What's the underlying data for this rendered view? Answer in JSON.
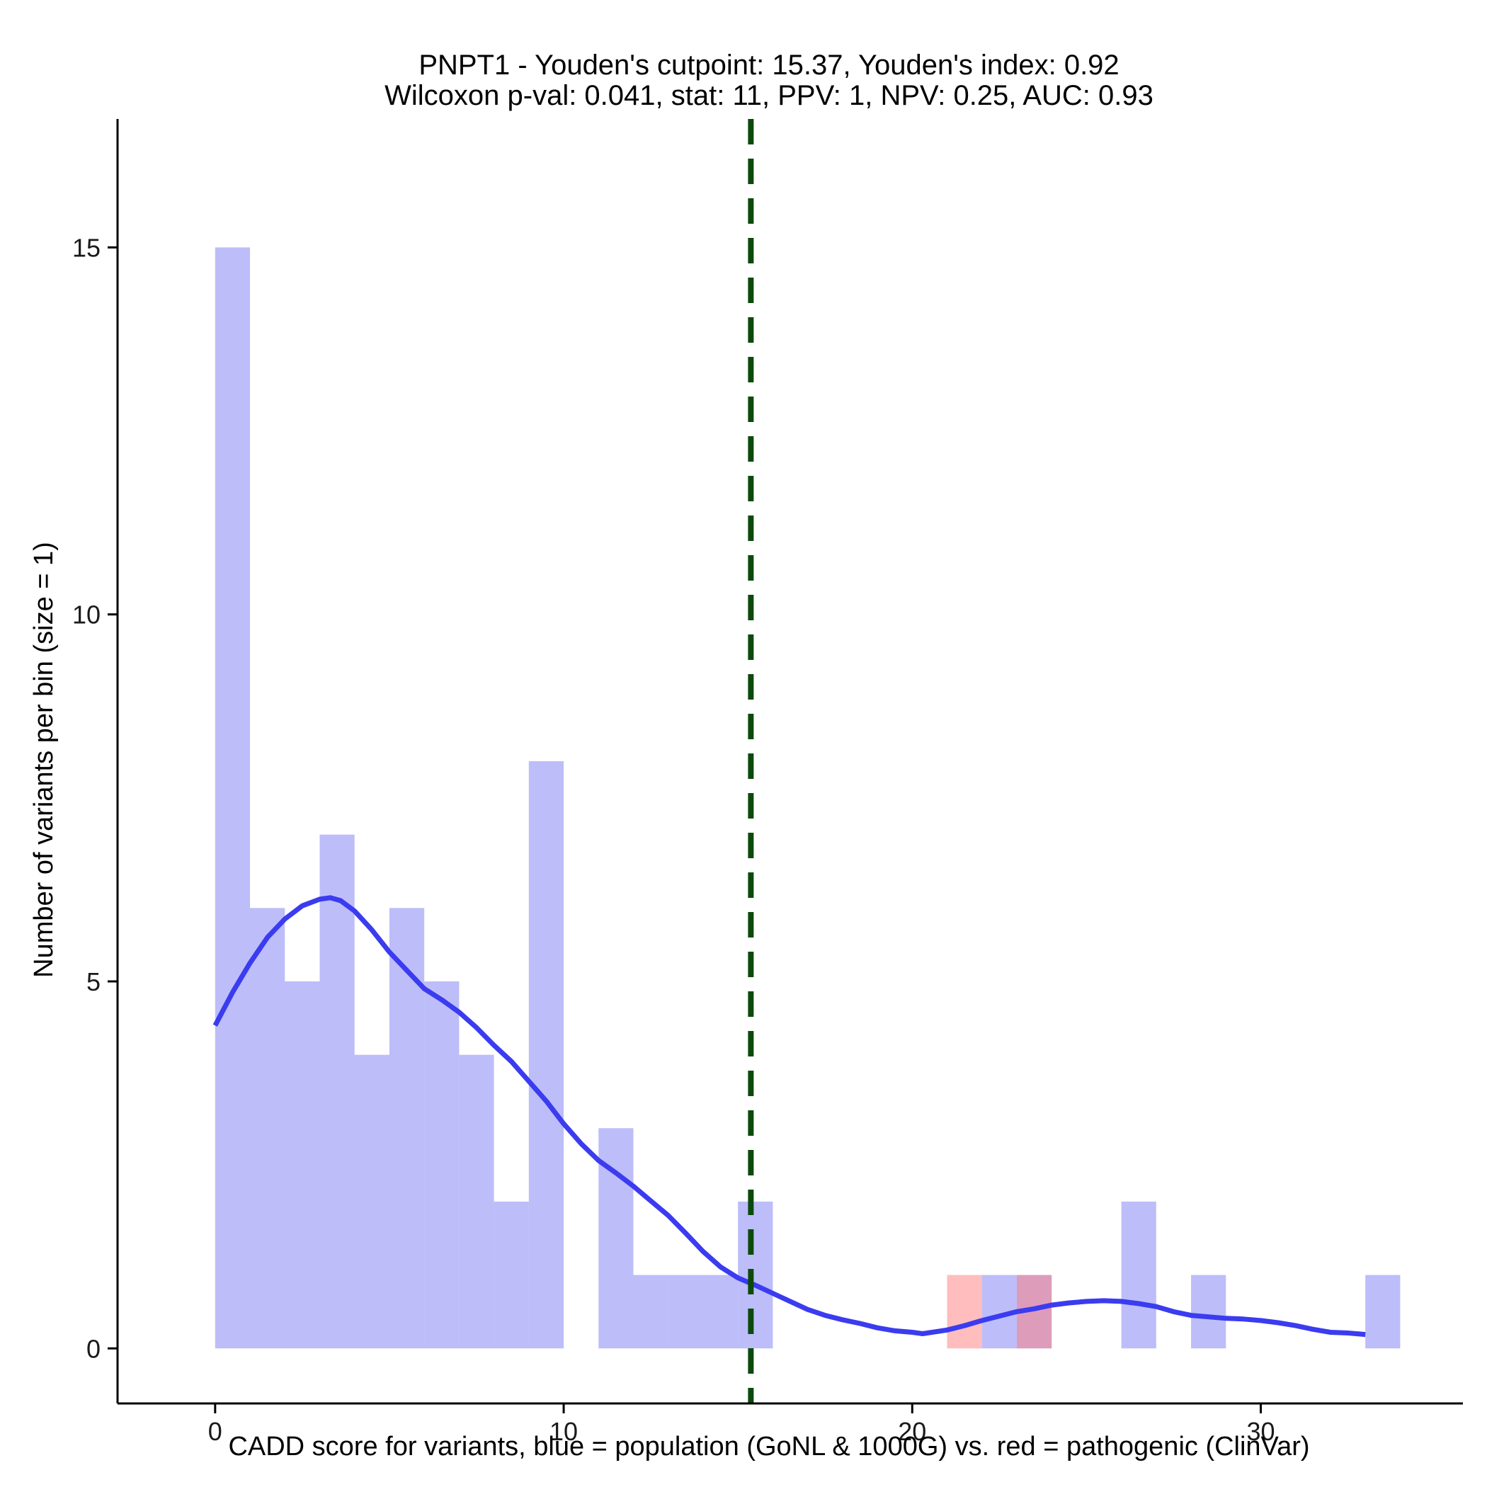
{
  "chart_data": {
    "type": "histogram",
    "title_line1": "PNPT1 - Youden's cutpoint: 15.37, Youden's index: 0.92",
    "title_line2": "Wilcoxon p-val: 0.041, stat: 11, PPV: 1, NPV: 0.25, AUC: 0.93",
    "xlabel": "CADD score for variants, blue = population (GoNL & 1000G) vs. red = pathogenic (ClinVar)",
    "ylabel": "Number of variants per bin (size = 1)",
    "xlim": [
      -2.8,
      35.8
    ],
    "ylim": [
      -0.75,
      16.75
    ],
    "x_ticks": [
      0,
      10,
      20,
      30
    ],
    "x_tick_labels": [
      "0",
      "10",
      "20",
      "30"
    ],
    "y_ticks": [
      0,
      5,
      10,
      15
    ],
    "y_tick_labels": [
      "0",
      "5",
      "10",
      "15"
    ],
    "bin_width": 1,
    "cutpoint": 15.37,
    "colors": {
      "population": "#7b7bf6",
      "pathogenic": "#ff7b7b",
      "density": "#3b3bf0",
      "cutpoint": "#0b4a0b"
    },
    "series": [
      {
        "name": "population (GoNL & 1000G)",
        "bins": [
          {
            "start": 0,
            "count": 15
          },
          {
            "start": 1,
            "count": 6
          },
          {
            "start": 2,
            "count": 5
          },
          {
            "start": 3,
            "count": 7
          },
          {
            "start": 4,
            "count": 4
          },
          {
            "start": 5,
            "count": 6
          },
          {
            "start": 6,
            "count": 5
          },
          {
            "start": 7,
            "count": 4
          },
          {
            "start": 8,
            "count": 2
          },
          {
            "start": 9,
            "count": 8
          },
          {
            "start": 11,
            "count": 3
          },
          {
            "start": 12,
            "count": 1
          },
          {
            "start": 13,
            "count": 1
          },
          {
            "start": 14,
            "count": 1
          },
          {
            "start": 15,
            "count": 2
          },
          {
            "start": 22,
            "count": 1
          },
          {
            "start": 23,
            "count": 1
          },
          {
            "start": 26,
            "count": 2
          },
          {
            "start": 28,
            "count": 1
          },
          {
            "start": 33,
            "count": 1
          }
        ]
      },
      {
        "name": "pathogenic (ClinVar)",
        "bins": [
          {
            "start": 21,
            "count": 1
          },
          {
            "start": 23,
            "count": 1
          }
        ]
      }
    ],
    "density_curve": {
      "name": "population density",
      "x": [
        0,
        0.5,
        1,
        1.5,
        2,
        2.5,
        3,
        3.3,
        3.6,
        4,
        4.5,
        5,
        5.5,
        6,
        6.5,
        7,
        7.5,
        8,
        8.5,
        9,
        9.5,
        10,
        10.5,
        11,
        11.5,
        12,
        12.5,
        13,
        13.5,
        14,
        14.5,
        15,
        15.5,
        16,
        16.5,
        17,
        17.5,
        18,
        18.5,
        19,
        19.5,
        20,
        20.3,
        21,
        21.5,
        22,
        22.5,
        23,
        23.5,
        24,
        24.5,
        25,
        25.5,
        26,
        26.5,
        27,
        27.5,
        28,
        28.5,
        29,
        29.5,
        30,
        30.5,
        31,
        31.5,
        32,
        32.5,
        33
      ],
      "y": [
        4.4,
        4.85,
        5.25,
        5.6,
        5.85,
        6.03,
        6.12,
        6.14,
        6.1,
        5.96,
        5.7,
        5.4,
        5.15,
        4.9,
        4.75,
        4.58,
        4.37,
        4.13,
        3.91,
        3.64,
        3.37,
        3.06,
        2.79,
        2.56,
        2.39,
        2.21,
        2.01,
        1.81,
        1.57,
        1.32,
        1.11,
        0.96,
        0.86,
        0.75,
        0.64,
        0.53,
        0.45,
        0.39,
        0.34,
        0.28,
        0.24,
        0.22,
        0.2,
        0.25,
        0.31,
        0.38,
        0.44,
        0.5,
        0.54,
        0.59,
        0.62,
        0.64,
        0.65,
        0.64,
        0.61,
        0.57,
        0.5,
        0.45,
        0.43,
        0.41,
        0.4,
        0.38,
        0.35,
        0.31,
        0.26,
        0.22,
        0.21,
        0.19
      ]
    }
  }
}
